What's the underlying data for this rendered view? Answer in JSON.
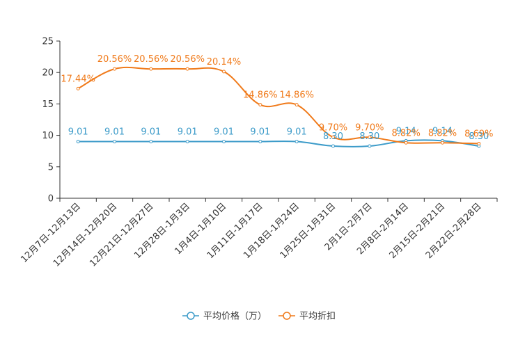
{
  "chart_data": {
    "type": "line",
    "title": "",
    "xlabel": "",
    "ylabel": "",
    "ylim": [
      0,
      25
    ],
    "yticks": [
      0,
      5,
      10,
      15,
      20,
      25
    ],
    "grid": false,
    "legend_position": "bottom-center",
    "categories": [
      "12月7日-12月13日",
      "12月14日-12月20日",
      "12月21日-12月27日",
      "12月28日-1月3日",
      "1月4日-1月10日",
      "1月11日-1月17日",
      "1月18日-1月24日",
      "1月25日-1月31日",
      "2月1日-2月7日",
      "2月8日-2月14日",
      "2月15日-2月21日",
      "2月22日-2月28日"
    ],
    "series": [
      {
        "name": "平均价格（万）",
        "color": "#3c9bc9",
        "values": [
          9.01,
          9.01,
          9.01,
          9.01,
          9.01,
          9.01,
          9.01,
          8.3,
          8.3,
          9.14,
          9.14,
          8.3
        ],
        "labels": [
          "9.01",
          "9.01",
          "9.01",
          "9.01",
          "9.01",
          "9.01",
          "9.01",
          "8.30",
          "8.30",
          "9.14",
          "9.14",
          "8.30"
        ]
      },
      {
        "name": "平均折扣",
        "color": "#f07a1a",
        "values": [
          17.44,
          20.56,
          20.56,
          20.56,
          20.14,
          14.86,
          14.86,
          9.7,
          9.7,
          8.82,
          8.82,
          8.69
        ],
        "labels": [
          "17.44%",
          "20.56%",
          "20.56%",
          "20.56%",
          "20.14%",
          "14.86%",
          "14.86%",
          "9.70%",
          "9.70%",
          "8.82%",
          "8.82%",
          "8.69%"
        ]
      }
    ]
  }
}
